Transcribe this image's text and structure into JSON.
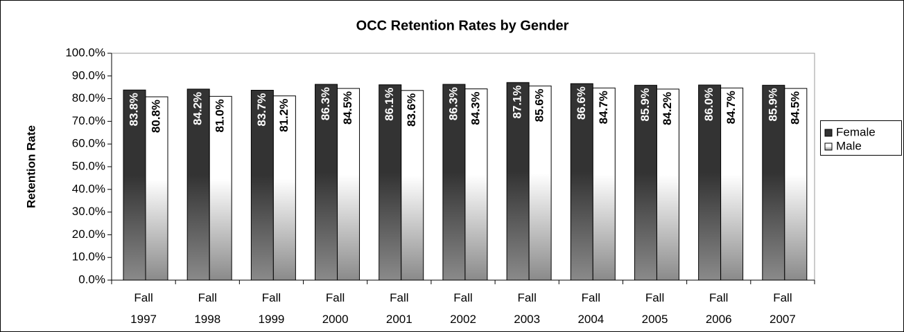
{
  "chart_data": {
    "type": "bar",
    "title": "OCC Retention Rates by Gender",
    "y_label": "Retention Rate",
    "categories": [
      "Fall 1997",
      "Fall 1998",
      "Fall 1999",
      "Fall 2000",
      "Fall 2001",
      "Fall 2002",
      "Fall 2003",
      "Fall 2004",
      "Fall 2005",
      "Fall 2006",
      "Fall 2007"
    ],
    "series": [
      {
        "name": "Female",
        "color": "#333333",
        "values": [
          83.8,
          84.2,
          83.7,
          86.3,
          86.1,
          86.3,
          87.1,
          86.6,
          85.9,
          86.0,
          85.9
        ],
        "value_labels": [
          "83.8%",
          "84.2%",
          "83.7%",
          "86.3%",
          "86.1%",
          "86.3%",
          "87.1%",
          "86.6%",
          "85.9%",
          "86.0%",
          "85.9%"
        ]
      },
      {
        "name": "Male",
        "color": "#ffffff",
        "values": [
          80.8,
          81.0,
          81.2,
          84.5,
          83.6,
          84.3,
          85.6,
          84.7,
          84.2,
          84.7,
          84.5
        ],
        "value_labels": [
          "80.8%",
          "81.0%",
          "81.2%",
          "84.5%",
          "83.6%",
          "84.3%",
          "85.6%",
          "84.7%",
          "84.2%",
          "84.7%",
          "84.5%"
        ]
      }
    ],
    "ylim": [
      0,
      100
    ],
    "yticks": [
      {
        "value": 0,
        "label": "0.0%"
      },
      {
        "value": 10,
        "label": "10.0%"
      },
      {
        "value": 20,
        "label": "20.0%"
      },
      {
        "value": 30,
        "label": "30.0%"
      },
      {
        "value": 40,
        "label": "40.0%"
      },
      {
        "value": 50,
        "label": "50.0%"
      },
      {
        "value": 60,
        "label": "60.0%"
      },
      {
        "value": 70,
        "label": "70.0%"
      },
      {
        "value": 80,
        "label": "80.0%"
      },
      {
        "value": 90,
        "label": "90.0%"
      },
      {
        "value": 100,
        "label": "100.0%"
      }
    ],
    "grid": false,
    "legend": "right"
  }
}
